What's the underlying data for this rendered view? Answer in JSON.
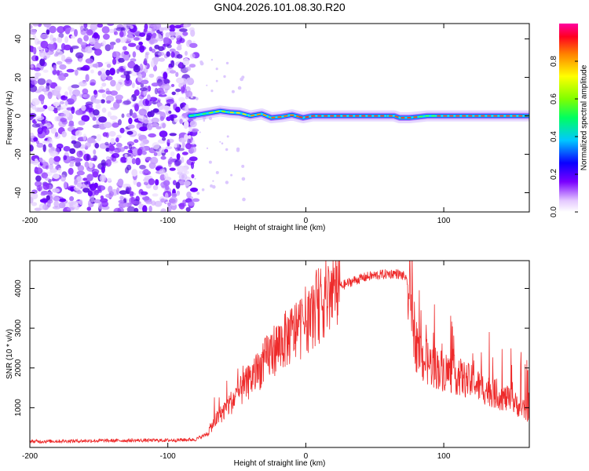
{
  "title": "GN04.2026.101.08.30.R20",
  "chart_data": [
    {
      "type": "heatmap",
      "name": "spectrogram",
      "xlabel": "Height of straight line (km)",
      "ylabel": "Frequency (Hz)",
      "xlim": [
        -200,
        162
      ],
      "ylim": [
        -50,
        48
      ],
      "xticks": [
        -200,
        -100,
        0,
        100
      ],
      "yticks": [
        -40,
        -20,
        0,
        20,
        40
      ],
      "noise_region_x": [
        -200,
        -83
      ],
      "signal_track": {
        "x": [
          -84,
          -78,
          -70,
          -62,
          -55,
          -48,
          -40,
          -32,
          -25,
          -18,
          -10,
          -2,
          5,
          15,
          30,
          50,
          64,
          68,
          75,
          82,
          88,
          100,
          120,
          140,
          162
        ],
        "freq": [
          0,
          0.5,
          1.5,
          2.5,
          1.8,
          1.5,
          0,
          1,
          -1,
          -0.5,
          0.5,
          -1,
          0,
          0,
          0,
          0,
          0,
          -1,
          -1,
          -0.5,
          0,
          0,
          0,
          0,
          0
        ]
      },
      "colorbar": {
        "label": "Normalized spectral amplitude",
        "range": [
          0,
          1
        ],
        "ticks": [
          0.0,
          0.2,
          0.4,
          0.6,
          0.8
        ]
      }
    },
    {
      "type": "line",
      "name": "snr",
      "xlabel": "Height of straight line (km)",
      "ylabel": "SNR (10 * v/v)",
      "xlim": [
        -200,
        162
      ],
      "ylim": [
        0,
        4700
      ],
      "xticks": [
        -200,
        -100,
        0,
        100
      ],
      "yticks": [
        1000,
        2000,
        3000,
        4000
      ],
      "series": [
        {
          "name": "SNR",
          "color": "#ee2a2a",
          "x": [
            -200,
            -150,
            -100,
            -80,
            -72,
            -65,
            -55,
            -45,
            -35,
            -25,
            -15,
            -5,
            5,
            15,
            25,
            35,
            45,
            55,
            65,
            72,
            76,
            80,
            85,
            95,
            110,
            125,
            140,
            150,
            162
          ],
          "y": [
            150,
            170,
            180,
            200,
            330,
            700,
            1100,
            1500,
            1900,
            2400,
            2700,
            3000,
            3400,
            3800,
            4050,
            4200,
            4300,
            4350,
            4380,
            4300,
            3700,
            2600,
            2200,
            2000,
            1800,
            1550,
            1300,
            1150,
            850
          ]
        }
      ]
    }
  ]
}
